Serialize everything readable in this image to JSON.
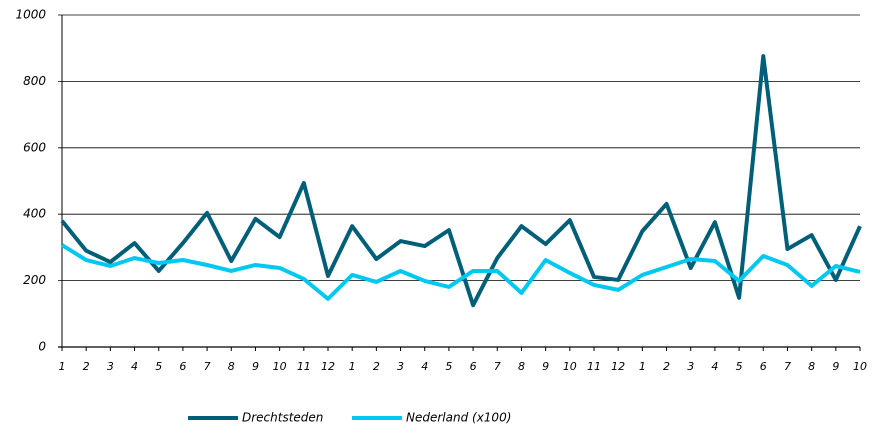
{
  "chart_data": {
    "type": "line",
    "categories": [
      "1",
      "2",
      "3",
      "4",
      "5",
      "6",
      "7",
      "8",
      "9",
      "10",
      "11",
      "12",
      "1",
      "2",
      "3",
      "4",
      "5",
      "6",
      "7",
      "8",
      "9",
      "10",
      "11",
      "12",
      "1",
      "2",
      "3",
      "4",
      "5",
      "6",
      "7",
      "8",
      "9",
      "10"
    ],
    "series": [
      {
        "name": "Drechtsteden",
        "color": "#005f78",
        "values": [
          380,
          290,
          256,
          313,
          229,
          313,
          404,
          259,
          386,
          331,
          494,
          214,
          364,
          265,
          319,
          304,
          352,
          126,
          268,
          364,
          310,
          382,
          211,
          202,
          349,
          431,
          238,
          376,
          148,
          876,
          295,
          337,
          202,
          364
        ]
      },
      {
        "name": "Nederland (x100)",
        "color": "#00c8f0",
        "values": [
          307,
          262,
          244,
          268,
          253,
          262,
          247,
          229,
          247,
          238,
          205,
          145,
          217,
          196,
          229,
          199,
          181,
          229,
          229,
          163,
          262,
          223,
          187,
          172,
          217,
          241,
          265,
          259,
          199,
          274,
          247,
          184,
          244,
          226
        ]
      }
    ],
    "ylim": [
      0,
      1000
    ],
    "yticks": [
      0,
      200,
      400,
      600,
      800,
      1000
    ],
    "grid": true
  }
}
